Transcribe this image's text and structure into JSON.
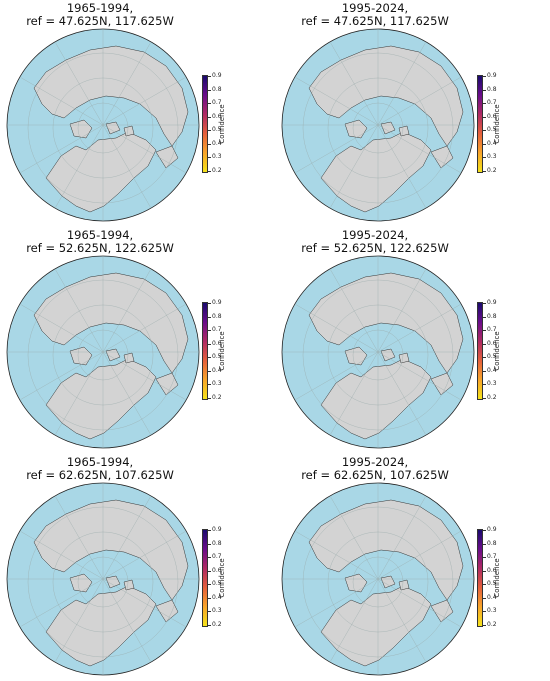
{
  "colorbar": {
    "label": "Confidence",
    "ticks": [
      "0.9",
      "0.8",
      "0.7",
      "0.6",
      "0.5",
      "0.4",
      "0.3",
      "0.2"
    ],
    "colors": {
      "low": "#f5e31a",
      "high": "#1a0a6e"
    }
  },
  "colors": {
    "ocean": "#a9d7e6",
    "land": "#d3d3d3",
    "route": "#2b3fe0",
    "point_edge": "#111111"
  },
  "panels": [
    {
      "line1": "1965-1994,",
      "line2": "ref = 47.625N, 117.625W",
      "density": "low"
    },
    {
      "line1": "1995-2024,",
      "line2": "ref = 47.625N, 117.625W",
      "density": "high"
    },
    {
      "line1": "1965-1994,",
      "line2": "ref = 52.625N, 122.625W",
      "density": "low"
    },
    {
      "line1": "1995-2024,",
      "line2": "ref = 52.625N, 122.625W",
      "density": "medium"
    },
    {
      "line1": "1965-1994,",
      "line2": "ref = 62.625N, 107.625W",
      "density": "low"
    },
    {
      "line1": "1995-2024,",
      "line2": "ref = 62.625N, 107.625W",
      "density": "low"
    }
  ]
}
